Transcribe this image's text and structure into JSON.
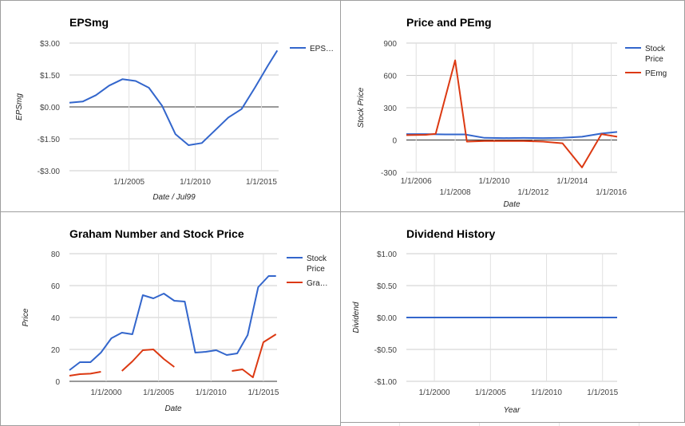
{
  "chart_data": [
    {
      "type": "line",
      "title": "EPSmg",
      "xlabel": "Date / Jul99",
      "ylabel": "EPSmg",
      "ylim": [
        -3,
        3
      ],
      "yticks": [
        "$3.00",
        "$1.50",
        "$0.00",
        "-$1.50",
        "-$3.00"
      ],
      "xlim": [
        2000.5,
        2016.3
      ],
      "xticks": [
        {
          "label": "1/1/2005",
          "x": 2005
        },
        {
          "label": "1/1/2010",
          "x": 2010
        },
        {
          "label": "1/1/2015",
          "x": 2015
        }
      ],
      "legend_position": "right",
      "series": [
        {
          "name": "EPS…",
          "color": "#3366cc",
          "x": [
            2000.5,
            2001.5,
            2002.5,
            2003.5,
            2004.5,
            2005.5,
            2006.5,
            2007.5,
            2008.5,
            2009.5,
            2010.5,
            2011.5,
            2012.5,
            2013.5,
            2014.5,
            2015.5,
            2016.2
          ],
          "y": [
            0.2,
            0.25,
            0.55,
            1.0,
            1.3,
            1.22,
            0.9,
            0.05,
            -1.28,
            -1.8,
            -1.7,
            -1.1,
            -0.5,
            -0.1,
            0.9,
            1.95,
            2.65
          ]
        }
      ]
    },
    {
      "type": "line",
      "title": "Price and PEmg",
      "xlabel": "Date",
      "ylabel": "Stock Price",
      "ylim": [
        -300,
        900
      ],
      "yticks": [
        "900",
        "600",
        "300",
        "0",
        "-300"
      ],
      "xlim": [
        2005.5,
        2016.3
      ],
      "xticks": [
        {
          "label": "1/1/2006",
          "x": 2006,
          "row": 0
        },
        {
          "label": "1/1/2008",
          "x": 2008,
          "row": 1
        },
        {
          "label": "1/1/2010",
          "x": 2010,
          "row": 0
        },
        {
          "label": "1/1/2012",
          "x": 2012,
          "row": 1
        },
        {
          "label": "1/1/2014",
          "x": 2014,
          "row": 0
        },
        {
          "label": "1/1/2016",
          "x": 2016,
          "row": 1
        }
      ],
      "legend_position": "right",
      "series": [
        {
          "name": "Stock Price",
          "color": "#3366cc",
          "x": [
            2005.5,
            2006.5,
            2007.5,
            2008.5,
            2009.5,
            2010.5,
            2011.5,
            2012.5,
            2013.5,
            2014.5,
            2015.5,
            2016.3
          ],
          "y": [
            55,
            55,
            52,
            52,
            20,
            18,
            19,
            18,
            20,
            30,
            60,
            75
          ]
        },
        {
          "name": "PEmg",
          "color": "#dc3912",
          "x": [
            2005.5,
            2006.5,
            2007.0,
            2008.0,
            2008.6,
            2009.5,
            2010.5,
            2011.5,
            2012.5,
            2013.5,
            2014.5,
            2015.5,
            2016.3
          ],
          "y": [
            45,
            48,
            58,
            740,
            -15,
            -10,
            -10,
            -10,
            -15,
            -30,
            -255,
            55,
            30
          ]
        }
      ]
    },
    {
      "type": "line",
      "title": "Graham Number and Stock Price",
      "xlabel": "Date",
      "ylabel": "Price",
      "ylim": [
        0,
        80
      ],
      "yticks": [
        "80",
        "60",
        "40",
        "20",
        "0"
      ],
      "xlim": [
        1996.5,
        2016.3
      ],
      "xticks": [
        {
          "label": "1/1/2000",
          "x": 2000
        },
        {
          "label": "1/1/2005",
          "x": 2005
        },
        {
          "label": "1/1/2010",
          "x": 2010
        },
        {
          "label": "1/1/2015",
          "x": 2015
        }
      ],
      "legend_position": "right",
      "series": [
        {
          "name": "Stock Price",
          "color": "#3366cc",
          "x": [
            1996.5,
            1997.5,
            1998.5,
            1999.5,
            2000.5,
            2001.5,
            2002.5,
            2003.5,
            2004.5,
            2005.5,
            2006.5,
            2007.5,
            2008.5,
            2009.5,
            2010.5,
            2011.5,
            2012.5,
            2013.5,
            2014.5,
            2015.5,
            2016.2
          ],
          "y": [
            7,
            12,
            12,
            18,
            27,
            30.5,
            29.5,
            54,
            52,
            55,
            50.5,
            50,
            18,
            18.5,
            19.5,
            16.5,
            17.5,
            29,
            59,
            66,
            66
          ]
        },
        {
          "name": "Gra…",
          "color": "#dc3912",
          "segments": [
            {
              "x": [
                1996.5,
                1997.5,
                1998.5,
                1999.5
              ],
              "y": [
                3.5,
                4.5,
                4.8,
                6
              ]
            },
            {
              "x": [
                2001.5,
                2002.5,
                2003.5,
                2004.5,
                2005.5,
                2006.5
              ],
              "y": [
                6.5,
                12.5,
                19.5,
                20,
                14,
                9
              ]
            },
            {
              "x": [
                2012.0,
                2013.0,
                2014.0,
                2015.0,
                2016.2
              ],
              "y": [
                6.5,
                7.5,
                2.5,
                24.5,
                29.5
              ]
            }
          ]
        }
      ]
    },
    {
      "type": "line",
      "title": "Dividend History",
      "xlabel": "Year",
      "ylabel": "Dividend",
      "ylim": [
        -1,
        1
      ],
      "yticks": [
        "$1.00",
        "$0.50",
        "$0.00",
        "-$0.50",
        "-$1.00"
      ],
      "xlim": [
        1997.5,
        2016.3
      ],
      "xticks": [
        {
          "label": "1/1/2000",
          "x": 2000
        },
        {
          "label": "1/1/2005",
          "x": 2005
        },
        {
          "label": "1/1/2010",
          "x": 2010
        },
        {
          "label": "1/1/2015",
          "x": 2015
        }
      ],
      "series": [
        {
          "name": "",
          "color": "#3366cc",
          "x": [
            1997.5,
            2016.3
          ],
          "y": [
            0,
            0
          ]
        }
      ]
    }
  ]
}
